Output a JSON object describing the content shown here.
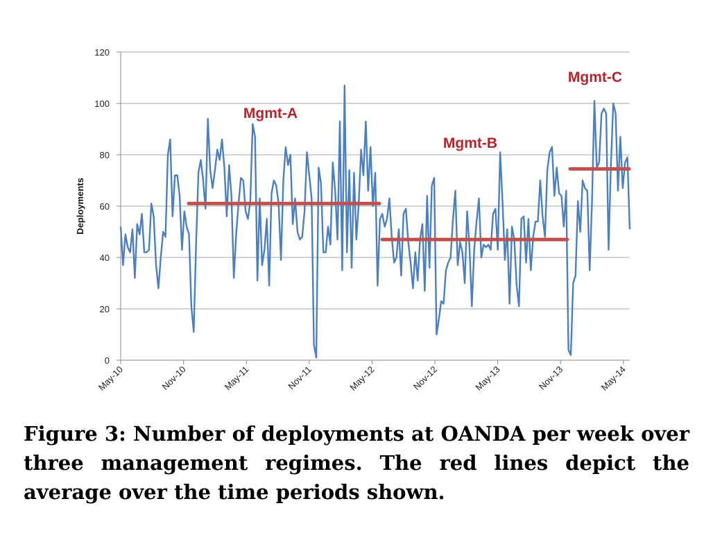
{
  "caption": "Figure 3: Number of deployments at OANDA per week over three management regimes. The red lines depict the average over the time periods shown.",
  "chart_data": {
    "type": "line",
    "title": "",
    "ylabel": "Deployments",
    "xlabel": "",
    "ylim": [
      0,
      120
    ],
    "yticks": [
      0,
      20,
      40,
      60,
      80,
      100,
      120
    ],
    "x_tick_labels": [
      "May-10",
      "Nov-10",
      "May-11",
      "Nov-11",
      "May-12",
      "Nov-12",
      "May-13",
      "Nov-13",
      "May-14"
    ],
    "grid": "horizontal",
    "series": [
      {
        "color": "#4a7fc1",
        "values": [
          52,
          37,
          49,
          44,
          42,
          51,
          32,
          53,
          49,
          57,
          42,
          42,
          43,
          61,
          56,
          37,
          28,
          40,
          50,
          48,
          80,
          86,
          56,
          72,
          72,
          64,
          43,
          58,
          52,
          49,
          21,
          11,
          45,
          73,
          78,
          70,
          59,
          94,
          74,
          67,
          74,
          82,
          78,
          86,
          75,
          56,
          76,
          64,
          32,
          49,
          61,
          71,
          70,
          58,
          55,
          62,
          92,
          87,
          31,
          63,
          37,
          43,
          55,
          29,
          65,
          70,
          68,
          61,
          39,
          70,
          83,
          76,
          80,
          53,
          63,
          50,
          47,
          48,
          58,
          81,
          72,
          63,
          6,
          1,
          75,
          69,
          42,
          42,
          52,
          45,
          77,
          66,
          47,
          93,
          35,
          107,
          42,
          74,
          36,
          73,
          47,
          61,
          82,
          72,
          93,
          66,
          83,
          60,
          73,
          29,
          55,
          57,
          52,
          55,
          63,
          48,
          38,
          40,
          51,
          33,
          57,
          59,
          46,
          38,
          28,
          42,
          31,
          47,
          53,
          27,
          64,
          36,
          68,
          71,
          10,
          16,
          23,
          22,
          35,
          38,
          40,
          55,
          66,
          37,
          46,
          42,
          30,
          58,
          44,
          21,
          43,
          54,
          63,
          40,
          45,
          44,
          45,
          43,
          57,
          59,
          43,
          81,
          62,
          39,
          51,
          22,
          52,
          47,
          29,
          21,
          55,
          56,
          38,
          55,
          35,
          48,
          54,
          54,
          70,
          56,
          48,
          74,
          81,
          83,
          64,
          75,
          65,
          64,
          52,
          66,
          4,
          2,
          30,
          33,
          62,
          50,
          70,
          67,
          66,
          35,
          62,
          101,
          75,
          77,
          96,
          98,
          96,
          43,
          76,
          100,
          96,
          66,
          87,
          67,
          77,
          79,
          51
        ]
      }
    ],
    "averages": [
      {
        "label": "Mgmt-A",
        "value": 61,
        "start": "Nov-10",
        "end": "May-12",
        "color": "#c0504d"
      },
      {
        "label": "Mgmt-B",
        "value": 47,
        "start": "May-12",
        "end": "Nov-13",
        "color": "#c0504d"
      },
      {
        "label": "Mgmt-C",
        "value": 74.5,
        "start": "Nov-13",
        "end": "May-14",
        "color": "#c0504d"
      }
    ]
  }
}
